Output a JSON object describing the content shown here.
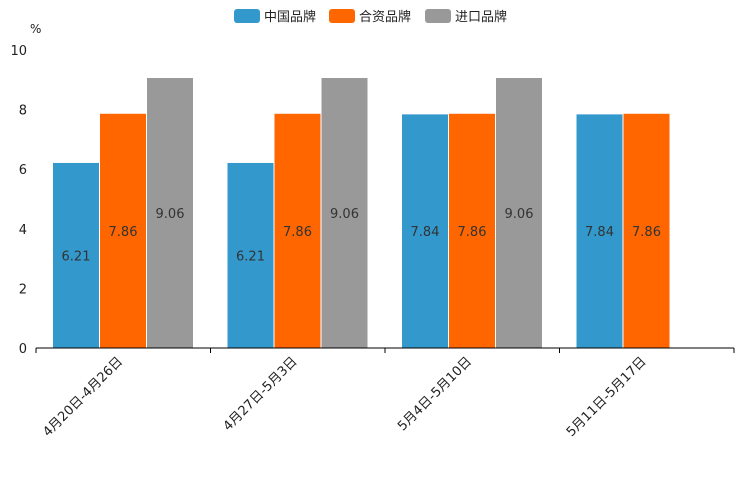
{
  "chart_data": {
    "type": "bar",
    "title": "",
    "xlabel": "",
    "ylabel": "%",
    "ylim": [
      0,
      10
    ],
    "yticks": [
      0,
      2,
      4,
      6,
      8,
      10
    ],
    "grid": false,
    "legend_position": "top-center",
    "categories": [
      "4月20日-4月26日",
      "4月27日-5月3日",
      "5月4日-5月10日",
      "5月11日-5月17日"
    ],
    "series": [
      {
        "name": "中国品牌",
        "color": "#3399cc",
        "values": [
          6.21,
          6.21,
          7.84,
          7.84
        ],
        "labels": [
          "6.21",
          "6.21",
          "7.84",
          "7.84"
        ]
      },
      {
        "name": "合资品牌",
        "color": "#ff6600",
        "values": [
          7.86,
          7.86,
          7.86,
          7.86
        ],
        "labels": [
          "7.86",
          "7.86",
          "7.86",
          "7.86"
        ]
      },
      {
        "name": "进口品牌",
        "color": "#999999",
        "values": [
          9.06,
          9.06,
          9.06,
          null
        ],
        "labels": [
          "9.06",
          "9.06",
          "9.06",
          null
        ]
      }
    ]
  }
}
